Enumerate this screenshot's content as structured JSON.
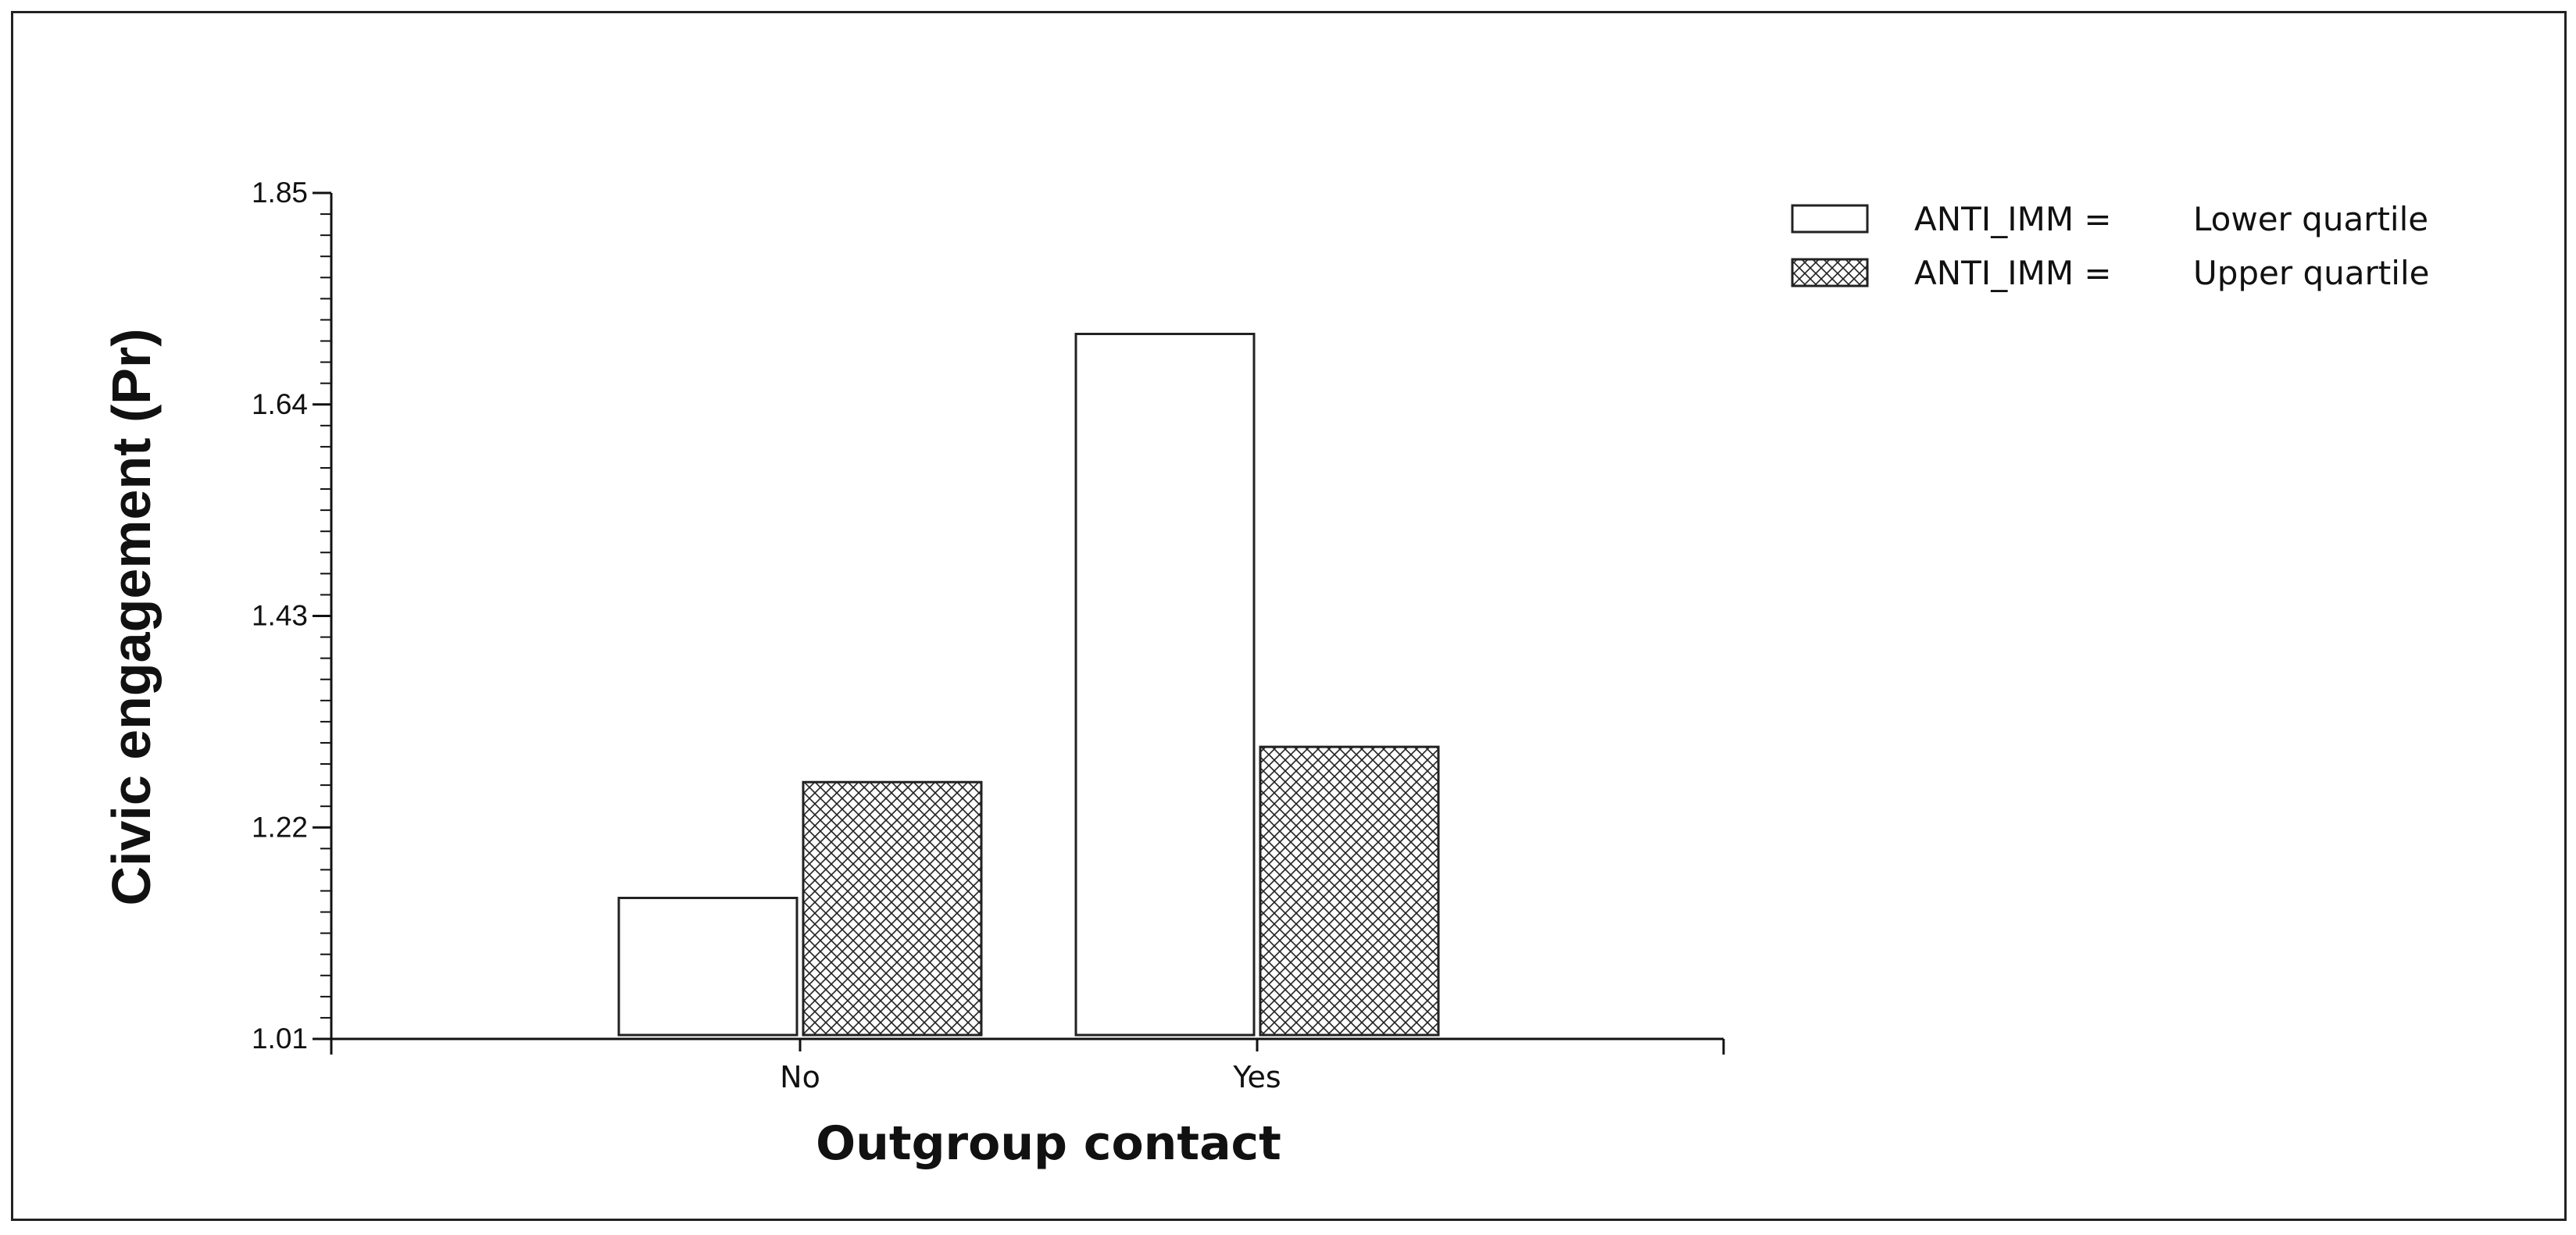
{
  "chart_data": {
    "type": "bar",
    "title": "",
    "xlabel": "Outgroup contact",
    "ylabel": "Civic engagement (Pr)",
    "categories": [
      "No",
      "Yes"
    ],
    "ylim": [
      1.01,
      1.85
    ],
    "yticks": [
      "1.01",
      "1.22",
      "1.43",
      "1.64",
      "1.85"
    ],
    "yticks_values": [
      1.01,
      1.22,
      1.43,
      1.64,
      1.85
    ],
    "series": [
      {
        "name": "ANTI_IMM = Lower quartile",
        "legend_var": "ANTI_IMM =",
        "legend_level": "Lower quartile",
        "fill": "white",
        "values": [
          1.15,
          1.71
        ]
      },
      {
        "name": "ANTI_IMM = Upper quartile",
        "legend_var": "ANTI_IMM =",
        "legend_level": "Upper quartile",
        "fill": "crosshatch",
        "values": [
          1.265,
          1.3
        ]
      }
    ],
    "grid": false,
    "legend_position": "top-right"
  }
}
